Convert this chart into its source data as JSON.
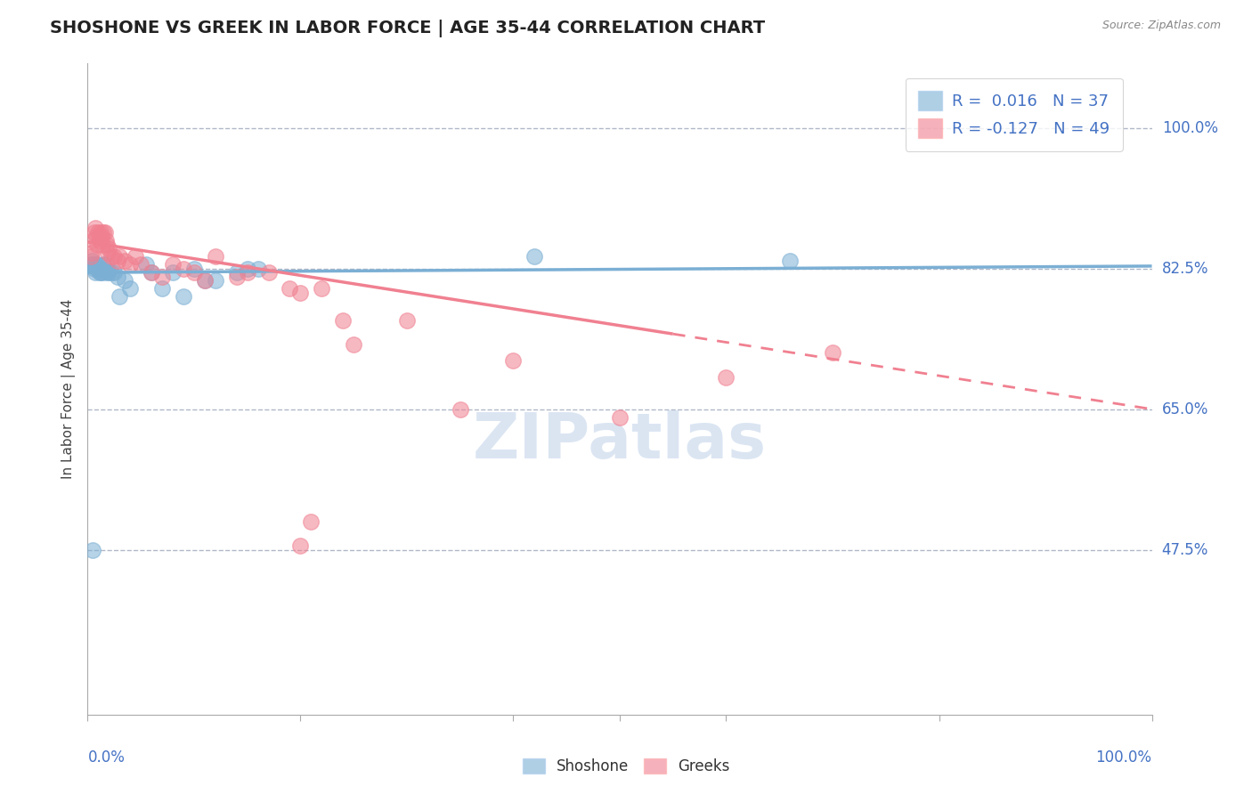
{
  "title": "SHOSHONE VS GREEK IN LABOR FORCE | AGE 35-44 CORRELATION CHART",
  "source": "Source: ZipAtlas.com",
  "ylabel": "In Labor Force | Age 35-44",
  "ytick_labels": [
    "100.0%",
    "82.5%",
    "65.0%",
    "47.5%"
  ],
  "ytick_values": [
    1.0,
    0.825,
    0.65,
    0.475
  ],
  "xlim": [
    0.0,
    1.0
  ],
  "ylim": [
    0.27,
    1.08
  ],
  "shoshone_color": "#7bafd4",
  "greek_color": "#f08090",
  "background_color": "#ffffff",
  "grid_color": "#b0b8c8",
  "axis_label_color": "#4472c4",
  "watermark_color": "#c8d8ec",
  "shoshone_x": [
    0.003,
    0.004,
    0.005,
    0.006,
    0.007,
    0.008,
    0.009,
    0.01,
    0.011,
    0.012,
    0.013,
    0.014,
    0.015,
    0.016,
    0.017,
    0.018,
    0.02,
    0.022,
    0.025,
    0.028,
    0.03,
    0.035,
    0.04,
    0.055,
    0.06,
    0.07,
    0.08,
    0.09,
    0.1,
    0.11,
    0.12,
    0.14,
    0.15,
    0.16,
    0.42,
    0.66,
    0.005
  ],
  "shoshone_y": [
    0.83,
    0.835,
    0.83,
    0.825,
    0.82,
    0.83,
    0.825,
    0.83,
    0.82,
    0.82,
    0.825,
    0.82,
    0.83,
    0.822,
    0.83,
    0.82,
    0.82,
    0.82,
    0.82,
    0.815,
    0.79,
    0.81,
    0.8,
    0.83,
    0.82,
    0.8,
    0.82,
    0.79,
    0.825,
    0.81,
    0.81,
    0.82,
    0.825,
    0.825,
    0.84,
    0.835,
    0.475
  ],
  "greek_x": [
    0.003,
    0.004,
    0.005,
    0.006,
    0.007,
    0.008,
    0.009,
    0.01,
    0.011,
    0.012,
    0.013,
    0.014,
    0.015,
    0.016,
    0.017,
    0.018,
    0.019,
    0.02,
    0.022,
    0.025,
    0.028,
    0.03,
    0.035,
    0.04,
    0.045,
    0.05,
    0.06,
    0.07,
    0.08,
    0.09,
    0.1,
    0.11,
    0.12,
    0.14,
    0.15,
    0.17,
    0.19,
    0.2,
    0.22,
    0.24,
    0.25,
    0.3,
    0.35,
    0.4,
    0.5,
    0.6,
    0.7,
    0.2,
    0.21
  ],
  "greek_y": [
    0.84,
    0.845,
    0.86,
    0.87,
    0.875,
    0.865,
    0.855,
    0.87,
    0.86,
    0.87,
    0.865,
    0.855,
    0.87,
    0.87,
    0.86,
    0.855,
    0.845,
    0.85,
    0.84,
    0.84,
    0.835,
    0.84,
    0.835,
    0.83,
    0.84,
    0.83,
    0.82,
    0.815,
    0.83,
    0.825,
    0.82,
    0.81,
    0.84,
    0.815,
    0.82,
    0.82,
    0.8,
    0.795,
    0.8,
    0.76,
    0.73,
    0.76,
    0.65,
    0.71,
    0.64,
    0.69,
    0.72,
    0.48,
    0.51
  ],
  "shoshone_line_y0": 0.82,
  "shoshone_line_y1": 0.828,
  "greek_line_y0": 0.858,
  "greek_line_y1": 0.65
}
